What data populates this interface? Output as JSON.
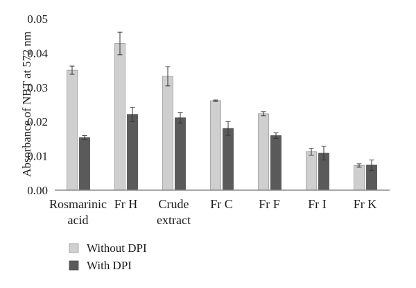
{
  "chart_data": {
    "type": "bar",
    "ylabel": "Absorbance of NBT at 572 nm",
    "xlabel": "",
    "title": "",
    "ylim": [
      0,
      0.05
    ],
    "yticks": [
      "0.00",
      "0.01",
      "0.02",
      "0.03",
      "0.04",
      "0.05"
    ],
    "categories": [
      [
        "Rosmarinic",
        "acid"
      ],
      [
        "Fr H"
      ],
      [
        "Crude",
        "extract"
      ],
      [
        "Fr C"
      ],
      [
        "Fr F"
      ],
      [
        "Fr I"
      ],
      [
        "Fr K"
      ]
    ],
    "series": [
      {
        "name": "Without DPI",
        "color": "#cfcfcf",
        "values": [
          0.035,
          0.0428,
          0.0332,
          0.0261,
          0.0223,
          0.0112,
          0.0072
        ],
        "errors": [
          0.0012,
          0.0033,
          0.0028,
          0.0002,
          0.0006,
          0.001,
          0.0005
        ]
      },
      {
        "name": "With DPI",
        "color": "#5a5a5a",
        "values": [
          0.0153,
          0.0221,
          0.0211,
          0.018,
          0.0159,
          0.0108,
          0.0073
        ],
        "errors": [
          0.0006,
          0.0021,
          0.0015,
          0.002,
          0.0008,
          0.002,
          0.0015
        ]
      }
    ],
    "legend": "bottom-left",
    "grid": false
  }
}
